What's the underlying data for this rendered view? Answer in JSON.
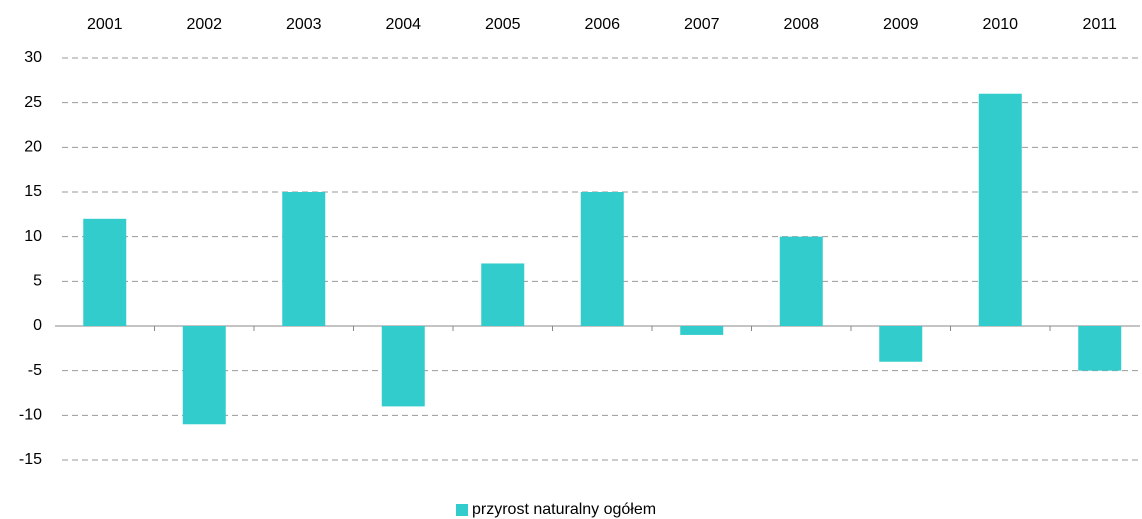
{
  "chart_data": {
    "type": "bar",
    "categories": [
      "2001",
      "2002",
      "2003",
      "2004",
      "2005",
      "2006",
      "2007",
      "2008",
      "2009",
      "2010",
      "2011"
    ],
    "series": [
      {
        "name": "przyrost naturalny ogółem",
        "color": "#33cccc",
        "values": [
          12,
          -11,
          15,
          -9,
          7,
          15,
          -1,
          10,
          -4,
          26,
          -5
        ]
      }
    ],
    "ylim": [
      -15,
      30
    ],
    "yticks": [
      -15,
      -10,
      -5,
      0,
      5,
      10,
      15,
      20,
      25,
      30
    ],
    "grid": true,
    "legend": "bottom"
  }
}
